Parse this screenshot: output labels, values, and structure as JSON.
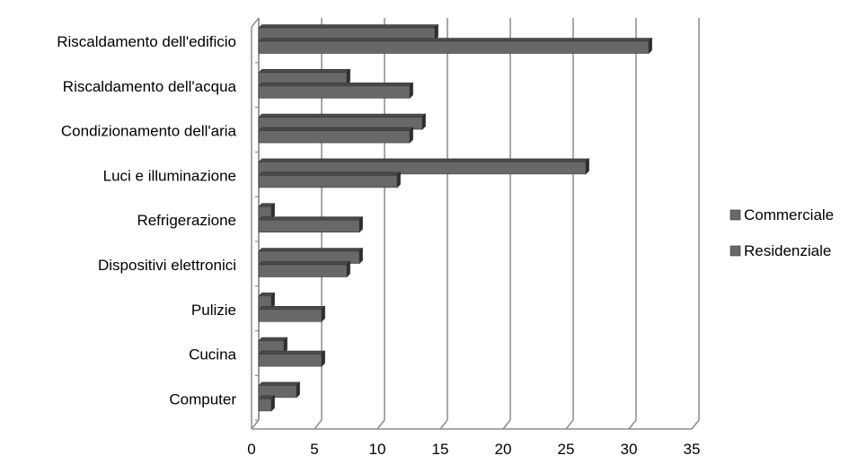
{
  "chart_data": {
    "type": "bar",
    "orientation": "horizontal",
    "categories": [
      "Riscaldamento dell'edificio",
      "Riscaldamento dell'acqua",
      "Condizionamento dell'aria",
      "Luci e illuminazione",
      "Refrigerazione",
      "Dispositivi elettronici",
      "Pulizie",
      "Cucina",
      "Computer"
    ],
    "series": [
      {
        "name": "Commerciale",
        "values": [
          14,
          7,
          13,
          26,
          1,
          8,
          1,
          2,
          3
        ]
      },
      {
        "name": "Residenziale",
        "values": [
          31,
          12,
          12,
          11,
          8,
          7,
          5,
          5,
          1
        ]
      }
    ],
    "xlim": [
      0,
      35
    ],
    "xticks": [
      "0",
      "5",
      "10",
      "15",
      "20",
      "25",
      "30",
      "35"
    ],
    "grid": true,
    "legend_position": "right",
    "title": "",
    "xlabel": "",
    "ylabel": ""
  },
  "colors": {
    "bar_front": "#686868",
    "bar_top": "#4a4a4a",
    "bar_side": "#2e2e2e",
    "grid": "#8c8c8c",
    "axis": "#8c8c8c"
  }
}
